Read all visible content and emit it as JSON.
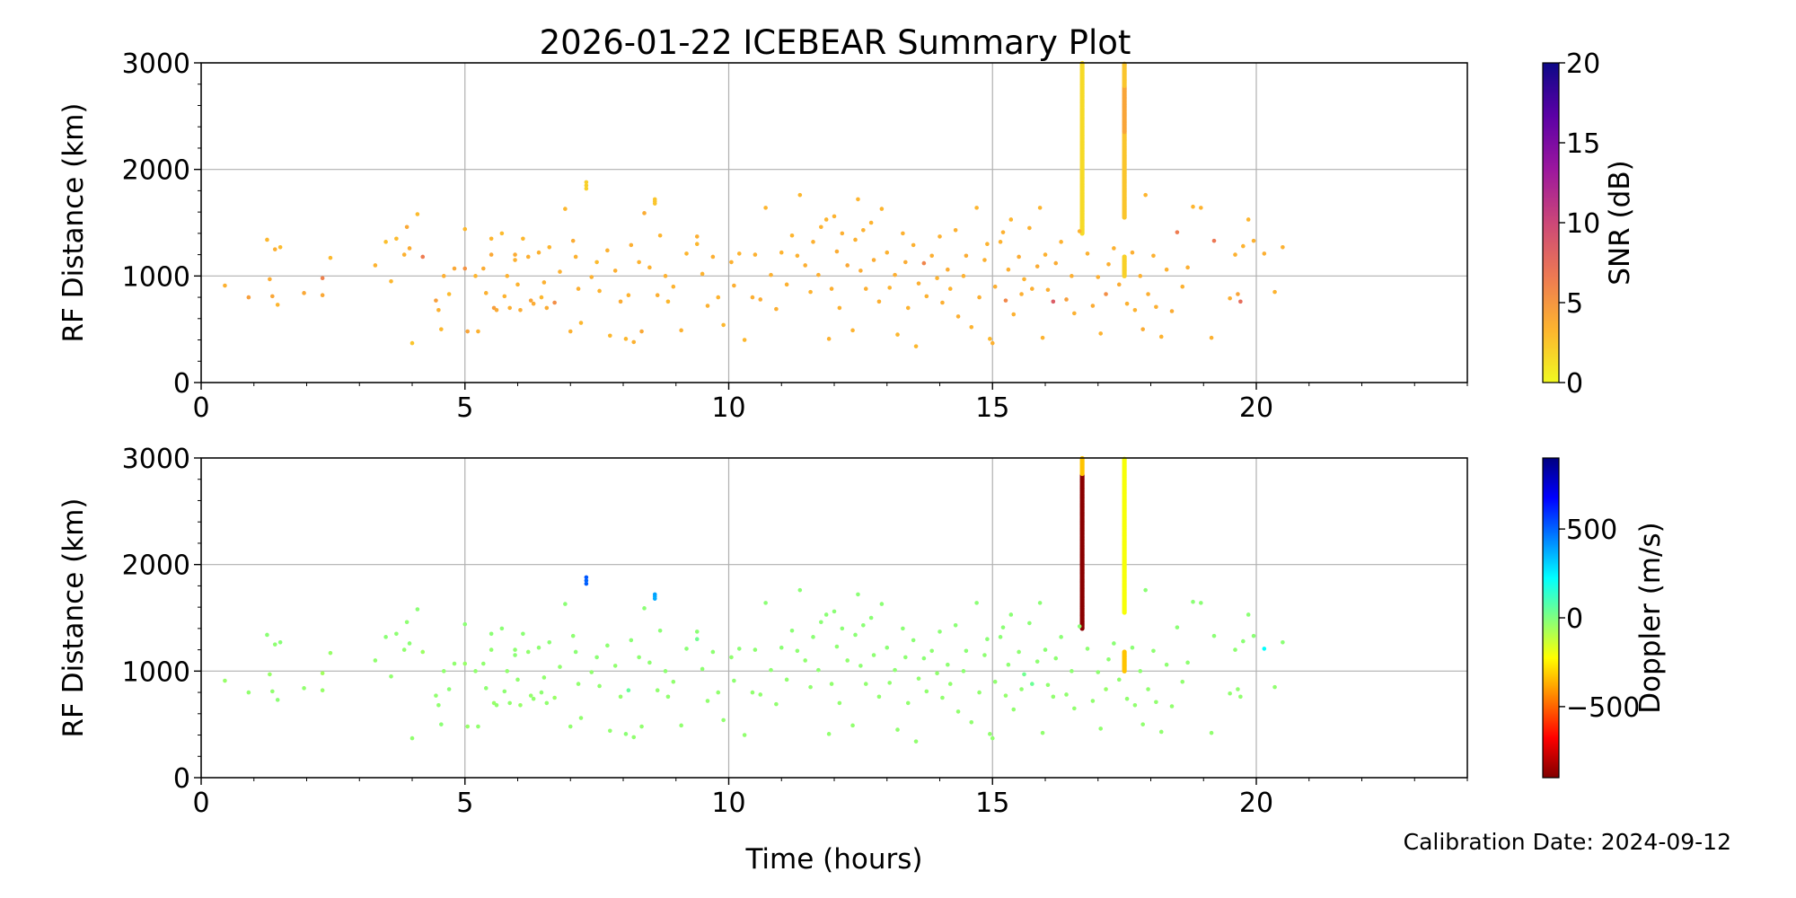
{
  "figure": {
    "title": "2026-01-22 ICEBEAR Summary Plot",
    "xlabel": "Time (hours)",
    "footer": "Calibration Date: 2024-09-12"
  },
  "chart_data": [
    {
      "type": "scatter",
      "xlim": [
        0,
        24
      ],
      "ylim": [
        0,
        3000
      ],
      "ylabel": "RF Distance (km)",
      "x_ticks": [
        0,
        5,
        10,
        15,
        20
      ],
      "y_ticks": [
        0,
        1000,
        2000,
        3000
      ],
      "grid": true,
      "colorbar": {
        "label": "SNR (dB)",
        "range": [
          0,
          20
        ],
        "ticks": [
          0,
          5,
          10,
          15,
          20
        ],
        "colormap": "plasma_r",
        "stops": [
          "#f0f921",
          "#fdb42f",
          "#ed7953",
          "#cc4778",
          "#9c179e",
          "#5c01a6",
          "#0d0887"
        ]
      }
    },
    {
      "type": "scatter",
      "xlim": [
        0,
        24
      ],
      "ylim": [
        0,
        3000
      ],
      "ylabel": "RF Distance (km)",
      "x_ticks": [
        0,
        5,
        10,
        15,
        20
      ],
      "y_ticks": [
        0,
        1000,
        2000,
        3000
      ],
      "grid": true,
      "colorbar": {
        "label": "Doppler (m/s)",
        "range": [
          -900,
          900
        ],
        "ticks": [
          -500,
          0,
          500
        ],
        "tick_labels": [
          "−500",
          "0",
          "500"
        ],
        "colormap": "jet_r",
        "stops": [
          "#800000",
          "#ff0000",
          "#ff8000",
          "#ffff00",
          "#80ff80",
          "#00ffff",
          "#0080ff",
          "#0000ff",
          "#000080"
        ]
      }
    }
  ],
  "scatter_points": [
    [
      0.45,
      910,
      3.5,
      -40
    ],
    [
      0.9,
      800,
      4.5,
      -30
    ],
    [
      1.25,
      1340,
      3.2,
      -20
    ],
    [
      1.3,
      970,
      3.8,
      -40
    ],
    [
      1.35,
      810,
      4.1,
      -30
    ],
    [
      1.4,
      1250,
      3.6,
      -25
    ],
    [
      1.45,
      730,
      3.3,
      -20
    ],
    [
      1.5,
      1270,
      3.0,
      -15
    ],
    [
      1.95,
      840,
      4.0,
      -30
    ],
    [
      2.3,
      980,
      6.2,
      -60
    ],
    [
      2.3,
      820,
      4.0,
      -40
    ],
    [
      2.45,
      1170,
      3.1,
      -40
    ],
    [
      3.3,
      1100,
      3.4,
      -30
    ],
    [
      3.5,
      1320,
      2.8,
      -20
    ],
    [
      3.6,
      950,
      3.2,
      -30
    ],
    [
      3.7,
      1350,
      3.0,
      -25
    ],
    [
      3.85,
      1200,
      3.5,
      -30
    ],
    [
      3.9,
      1460,
      4.0,
      -25
    ],
    [
      3.95,
      1260,
      3.8,
      -20
    ],
    [
      4.0,
      370,
      2.5,
      -30
    ],
    [
      4.1,
      1580,
      3.0,
      -20
    ],
    [
      4.2,
      1180,
      6.5,
      -50
    ],
    [
      4.45,
      770,
      4.5,
      -30
    ],
    [
      4.5,
      680,
      3.5,
      -30
    ],
    [
      4.55,
      500,
      3.2,
      -20
    ],
    [
      4.6,
      1000,
      3.6,
      -30
    ],
    [
      4.7,
      830,
      3.0,
      -20
    ],
    [
      4.8,
      1070,
      4.0,
      -30
    ],
    [
      5.0,
      1440,
      3.2,
      -20
    ],
    [
      5.0,
      1070,
      5.2,
      -40
    ],
    [
      5.05,
      480,
      4.2,
      -40
    ],
    [
      5.2,
      1000,
      3.3,
      -30
    ],
    [
      5.25,
      480,
      3.5,
      -30
    ],
    [
      5.35,
      1070,
      3.8,
      -30
    ],
    [
      5.4,
      840,
      3.5,
      -25
    ],
    [
      5.5,
      1350,
      3.3,
      -20
    ],
    [
      5.5,
      1200,
      4.0,
      -30
    ],
    [
      5.55,
      700,
      4.6,
      -40
    ],
    [
      5.6,
      680,
      3.9,
      -30
    ],
    [
      5.7,
      1400,
      3.0,
      -20
    ],
    [
      5.75,
      810,
      3.4,
      -25
    ],
    [
      5.8,
      1000,
      3.5,
      -30
    ],
    [
      5.85,
      700,
      3.6,
      -30
    ],
    [
      5.95,
      1200,
      3.8,
      -25
    ],
    [
      5.95,
      1150,
      3.5,
      -20
    ],
    [
      6.0,
      920,
      3.4,
      -30
    ],
    [
      6.05,
      680,
      3.8,
      -40
    ],
    [
      6.1,
      1350,
      3.2,
      -20
    ],
    [
      6.2,
      1180,
      3.6,
      -30
    ],
    [
      6.25,
      770,
      4.2,
      -35
    ],
    [
      6.3,
      740,
      3.8,
      -30
    ],
    [
      6.4,
      1220,
      3.5,
      -25
    ],
    [
      6.45,
      800,
      3.2,
      -25
    ],
    [
      6.5,
      940,
      3.5,
      -30
    ],
    [
      6.55,
      700,
      3.8,
      -30
    ],
    [
      6.6,
      1270,
      3.3,
      -20
    ],
    [
      6.7,
      750,
      5.5,
      -45
    ],
    [
      6.8,
      1040,
      3.5,
      -30
    ],
    [
      6.9,
      1630,
      3.2,
      -20
    ],
    [
      7.0,
      480,
      3.5,
      -30
    ],
    [
      7.05,
      1330,
      3.8,
      -25
    ],
    [
      7.1,
      1180,
      3.5,
      -20
    ],
    [
      7.15,
      880,
      3.6,
      -30
    ],
    [
      7.2,
      560,
      3.2,
      -30
    ],
    [
      7.3,
      1820,
      2.0,
      510
    ],
    [
      7.3,
      1850,
      2.0,
      500
    ],
    [
      7.3,
      1880,
      2.0,
      520
    ],
    [
      7.4,
      990,
      3.5,
      -30
    ],
    [
      7.5,
      1130,
      3.0,
      -20
    ],
    [
      7.55,
      860,
      3.4,
      -30
    ],
    [
      7.7,
      1240,
      3.5,
      -25
    ],
    [
      7.75,
      440,
      3.2,
      -30
    ],
    [
      7.85,
      1050,
      3.6,
      -30
    ],
    [
      7.95,
      760,
      3.8,
      -35
    ],
    [
      8.05,
      410,
      3.2,
      -20
    ],
    [
      8.1,
      820,
      3.4,
      50
    ],
    [
      8.15,
      1290,
      3.6,
      -20
    ],
    [
      8.2,
      380,
      3.5,
      -30
    ],
    [
      8.3,
      1130,
      3.4,
      -25
    ],
    [
      8.35,
      480,
      4.0,
      -30
    ],
    [
      8.4,
      1590,
      3.8,
      -20
    ],
    [
      8.5,
      1080,
      3.5,
      -25
    ],
    [
      8.6,
      1680,
      2.5,
      380
    ],
    [
      8.6,
      1700,
      2.5,
      370
    ],
    [
      8.6,
      1720,
      2.5,
      390
    ],
    [
      8.65,
      820,
      3.6,
      -30
    ],
    [
      8.7,
      1380,
      3.3,
      -20
    ],
    [
      8.8,
      1000,
      3.5,
      -25
    ],
    [
      8.85,
      760,
      3.2,
      -30
    ],
    [
      8.95,
      900,
      3.4,
      -30
    ],
    [
      9.1,
      490,
      3.5,
      -30
    ],
    [
      9.2,
      1210,
      3.3,
      -20
    ],
    [
      9.4,
      1370,
      3.6,
      -20
    ],
    [
      9.4,
      1300,
      3.2,
      30
    ],
    [
      9.5,
      1020,
      3.4,
      -25
    ],
    [
      9.6,
      720,
      3.5,
      -30
    ],
    [
      9.7,
      1180,
      3.6,
      -25
    ],
    [
      9.8,
      800,
      3.4,
      -30
    ],
    [
      9.9,
      540,
      3.2,
      -30
    ],
    [
      10.05,
      1130,
      3.5,
      -30
    ],
    [
      10.1,
      910,
      3.6,
      -25
    ],
    [
      10.2,
      1210,
      3.4,
      -20
    ],
    [
      10.3,
      400,
      3.2,
      -30
    ],
    [
      10.45,
      800,
      3.6,
      -30
    ],
    [
      10.5,
      1200,
      3.5,
      -25
    ],
    [
      10.6,
      780,
      3.8,
      -30
    ],
    [
      10.7,
      1640,
      3.3,
      -20
    ],
    [
      10.8,
      1010,
      3.5,
      -25
    ],
    [
      10.9,
      690,
      3.6,
      -30
    ],
    [
      11.0,
      1220,
      3.4,
      -20
    ],
    [
      11.1,
      920,
      3.5,
      -30
    ],
    [
      11.2,
      1380,
      3.3,
      -20
    ],
    [
      11.3,
      1190,
      3.5,
      -25
    ],
    [
      11.35,
      1760,
      3.2,
      -20
    ],
    [
      11.45,
      1100,
      3.6,
      -30
    ],
    [
      11.55,
      850,
      3.4,
      -30
    ],
    [
      11.6,
      1320,
      3.5,
      -20
    ],
    [
      11.7,
      1010,
      3.6,
      -25
    ],
    [
      11.75,
      1460,
      3.4,
      -20
    ],
    [
      11.85,
      1530,
      3.3,
      -20
    ],
    [
      11.9,
      410,
      3.5,
      -30
    ],
    [
      11.95,
      880,
      3.6,
      -30
    ],
    [
      12.0,
      1560,
      3.4,
      -20
    ],
    [
      12.05,
      1230,
      3.8,
      -25
    ],
    [
      12.1,
      700,
      3.5,
      -30
    ],
    [
      12.15,
      1400,
      3.6,
      -20
    ],
    [
      12.25,
      1100,
      4.0,
      -30
    ],
    [
      12.35,
      490,
      3.4,
      -30
    ],
    [
      12.4,
      1340,
      3.5,
      -20
    ],
    [
      12.45,
      1720,
      3.3,
      -20
    ],
    [
      12.5,
      1050,
      3.8,
      -25
    ],
    [
      12.55,
      1430,
      3.5,
      -20
    ],
    [
      12.6,
      880,
      3.6,
      -30
    ],
    [
      12.7,
      1500,
      3.4,
      -20
    ],
    [
      12.75,
      1150,
      3.8,
      -25
    ],
    [
      12.85,
      760,
      3.6,
      -30
    ],
    [
      12.9,
      1630,
      3.3,
      -20
    ],
    [
      13.0,
      1220,
      3.5,
      -20
    ],
    [
      13.05,
      890,
      3.4,
      -30
    ],
    [
      13.15,
      1010,
      3.6,
      -25
    ],
    [
      13.2,
      450,
      3.2,
      -30
    ],
    [
      13.3,
      1400,
      3.5,
      -20
    ],
    [
      13.35,
      1130,
      3.8,
      -25
    ],
    [
      13.4,
      700,
      3.4,
      -30
    ],
    [
      13.5,
      1290,
      3.5,
      -20
    ],
    [
      13.55,
      340,
      3.2,
      -30
    ],
    [
      13.6,
      930,
      3.6,
      -30
    ],
    [
      13.7,
      1120,
      6.0,
      -20
    ],
    [
      13.75,
      810,
      3.5,
      -30
    ],
    [
      13.85,
      1190,
      3.6,
      -25
    ],
    [
      13.95,
      980,
      3.4,
      -30
    ],
    [
      14.0,
      1370,
      3.5,
      -20
    ],
    [
      14.05,
      750,
      3.6,
      -30
    ],
    [
      14.15,
      1060,
      3.8,
      -25
    ],
    [
      14.2,
      880,
      3.4,
      -30
    ],
    [
      14.3,
      1430,
      3.5,
      -20
    ],
    [
      14.35,
      620,
      3.6,
      -30
    ],
    [
      14.45,
      1000,
      3.5,
      -25
    ],
    [
      14.5,
      1190,
      3.8,
      -20
    ],
    [
      14.6,
      520,
      3.4,
      -30
    ],
    [
      14.7,
      1640,
      3.3,
      -20
    ],
    [
      14.75,
      800,
      3.6,
      -30
    ],
    [
      14.85,
      1150,
      3.5,
      -25
    ],
    [
      14.9,
      1300,
      3.4,
      -20
    ],
    [
      14.95,
      410,
      3.2,
      -30
    ],
    [
      15.0,
      370,
      3.5,
      -30
    ],
    [
      15.05,
      900,
      3.6,
      -30
    ],
    [
      15.15,
      1320,
      3.4,
      -20
    ],
    [
      15.2,
      1410,
      3.5,
      -20
    ],
    [
      15.25,
      770,
      5.8,
      -35
    ],
    [
      15.3,
      1060,
      3.6,
      -25
    ],
    [
      15.35,
      1530,
      3.3,
      -20
    ],
    [
      15.4,
      640,
      3.5,
      -30
    ],
    [
      15.5,
      1180,
      3.8,
      -25
    ],
    [
      15.55,
      830,
      3.6,
      -30
    ],
    [
      15.6,
      970,
      3.4,
      30
    ],
    [
      15.7,
      1450,
      3.5,
      -20
    ],
    [
      15.75,
      880,
      3.6,
      40
    ],
    [
      15.85,
      1090,
      3.8,
      -25
    ],
    [
      15.9,
      1640,
      3.3,
      -20
    ],
    [
      15.95,
      420,
      3.4,
      -30
    ],
    [
      16.0,
      1200,
      3.5,
      -20
    ],
    [
      16.05,
      870,
      3.6,
      -30
    ],
    [
      16.15,
      760,
      8.5,
      -30
    ],
    [
      16.2,
      1120,
      3.8,
      -25
    ],
    [
      16.3,
      1320,
      3.4,
      -20
    ],
    [
      16.4,
      780,
      4.5,
      -30
    ],
    [
      16.5,
      1000,
      3.6,
      -25
    ],
    [
      16.55,
      650,
      3.5,
      -30
    ],
    [
      16.65,
      1420,
      3.4,
      -20
    ],
    [
      16.8,
      1210,
      3.5,
      -25
    ],
    [
      16.9,
      720,
      3.8,
      -30
    ],
    [
      17.0,
      990,
      3.6,
      -25
    ],
    [
      17.05,
      460,
      3.4,
      -30
    ],
    [
      17.15,
      830,
      5.5,
      -40
    ],
    [
      17.2,
      1110,
      3.6,
      -25
    ],
    [
      17.3,
      1260,
      3.5,
      -20
    ],
    [
      17.4,
      920,
      3.8,
      -30
    ],
    [
      17.55,
      740,
      3.5,
      -30
    ],
    [
      17.65,
      1220,
      3.6,
      -20
    ],
    [
      17.7,
      680,
      3.4,
      -30
    ],
    [
      17.8,
      1000,
      3.5,
      -25
    ],
    [
      17.85,
      500,
      3.8,
      -30
    ],
    [
      17.9,
      1760,
      3.3,
      -20
    ],
    [
      17.95,
      830,
      3.6,
      -30
    ],
    [
      18.05,
      1190,
      3.5,
      -25
    ],
    [
      18.1,
      710,
      3.6,
      -30
    ],
    [
      18.2,
      430,
      3.4,
      -30
    ],
    [
      18.3,
      1060,
      3.5,
      -25
    ],
    [
      18.4,
      670,
      3.8,
      -30
    ],
    [
      18.5,
      1410,
      6.5,
      -20
    ],
    [
      18.6,
      900,
      3.5,
      -30
    ],
    [
      18.7,
      1080,
      3.6,
      -25
    ],
    [
      18.8,
      1650,
      3.3,
      -20
    ],
    [
      18.95,
      1640,
      3.4,
      -20
    ],
    [
      19.15,
      420,
      3.5,
      -30
    ],
    [
      19.2,
      1330,
      6.8,
      -20
    ],
    [
      19.5,
      790,
      3.6,
      -30
    ],
    [
      19.6,
      1200,
      3.5,
      -25
    ],
    [
      19.65,
      830,
      4.2,
      -30
    ],
    [
      19.7,
      760,
      7.5,
      -30
    ],
    [
      19.75,
      1280,
      3.4,
      -20
    ],
    [
      19.85,
      1530,
      3.3,
      -20
    ],
    [
      19.95,
      1330,
      3.5,
      -20
    ],
    [
      20.15,
      1210,
      3.6,
      220
    ],
    [
      20.35,
      850,
      3.4,
      -30
    ],
    [
      20.5,
      1270,
      3.5,
      -20
    ]
  ],
  "vertical_streaks": [
    {
      "x": 16.7,
      "y_from": 1400,
      "y_to": 3000,
      "snr": 1.5,
      "doppler": -880,
      "doppler_top": -330
    },
    {
      "x": 17.5,
      "y_from": 1550,
      "y_to": 3000,
      "snr": 2.5,
      "snr_mid": 4.2,
      "doppler": -210
    },
    {
      "x": 17.5,
      "y_from": 1000,
      "y_to": 1180,
      "snr": 2.0,
      "doppler": -330
    }
  ]
}
